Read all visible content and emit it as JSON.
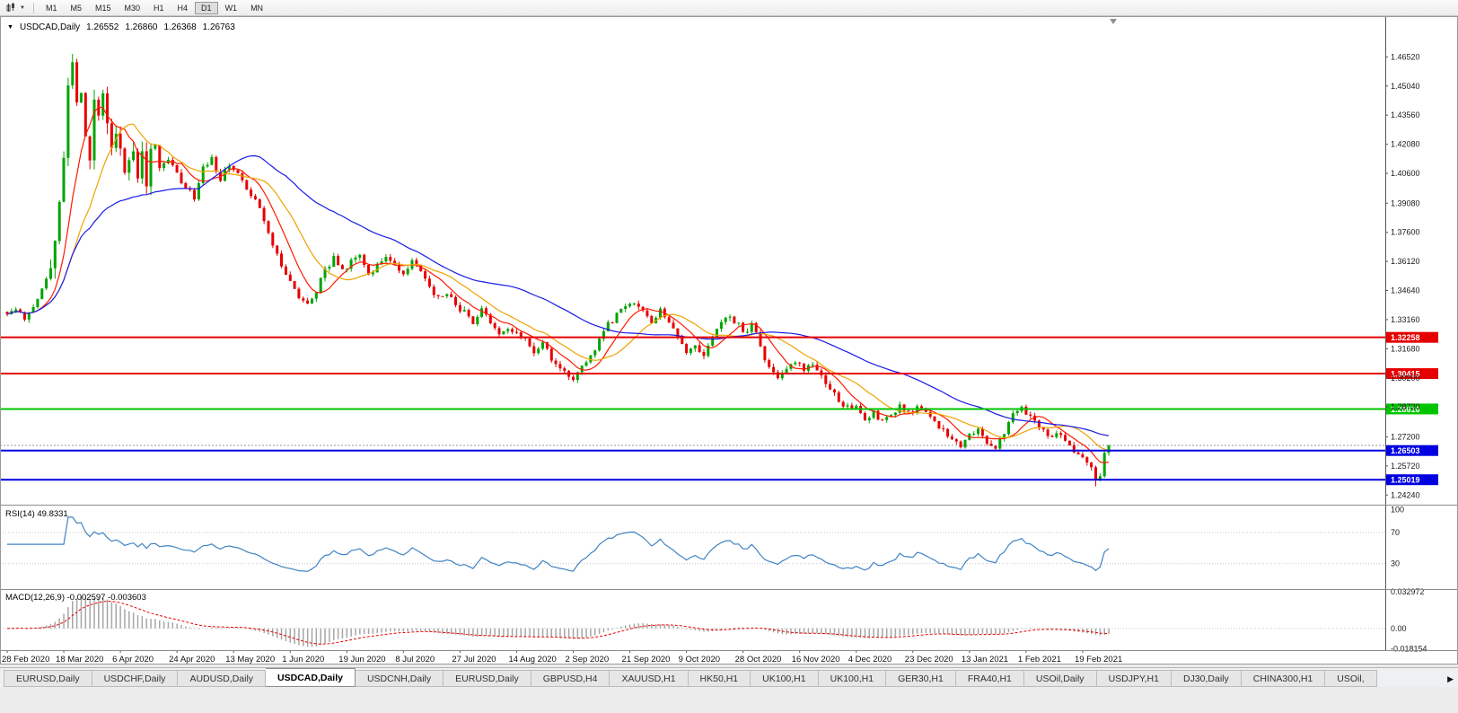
{
  "icons": {
    "chart_menu_glyph": "▼",
    "toolbar_dropdown_glyph": "▼",
    "tabs_scroll_right_glyph": "▶"
  },
  "toolbar": {
    "timeframes": [
      {
        "label": "M1",
        "active": false
      },
      {
        "label": "M5",
        "active": false
      },
      {
        "label": "M15",
        "active": false
      },
      {
        "label": "M30",
        "active": false
      },
      {
        "label": "H1",
        "active": false
      },
      {
        "label": "H4",
        "active": false
      },
      {
        "label": "D1",
        "active": true
      },
      {
        "label": "W1",
        "active": false
      },
      {
        "label": "MN",
        "active": false
      }
    ]
  },
  "chart": {
    "title": "USDCAD,Daily",
    "ohlc": {
      "open": "1.26552",
      "high": "1.26860",
      "low": "1.26368",
      "close": "1.26763"
    },
    "price_axis": {
      "pmax": 1.485,
      "pmin": 1.2375,
      "labels": [
        "1.46520",
        "1.45040",
        "1.43560",
        "1.42080",
        "1.40600",
        "1.39080",
        "1.37600",
        "1.36120",
        "1.34640",
        "1.33160",
        "1.31680",
        "1.30200",
        "1.28720",
        "1.27200",
        "1.25720",
        "1.24240"
      ]
    },
    "hlines": [
      {
        "price": 1.32258,
        "label": "1.32258",
        "color": "#e60000",
        "width": 2
      },
      {
        "price": 1.30415,
        "label": "1.30415",
        "color": "#e60000",
        "width": 2
      },
      {
        "price": 1.28616,
        "label": "1.28616",
        "color": "#00c400",
        "width": 2
      },
      {
        "price": 1.26503,
        "label": "1.26503",
        "color": "#0000e0",
        "width": 2
      },
      {
        "price": 1.25019,
        "label": "1.25019",
        "color": "#0000e0",
        "width": 2
      }
    ],
    "bid_line": {
      "price": 1.26763,
      "color": "#9a9a9a"
    },
    "date_axis": {
      "labels": [
        {
          "index": 0,
          "text": "28 Feb 2020"
        },
        {
          "index": 13,
          "text": "18 Mar 2020"
        },
        {
          "index": 26,
          "text": "6 Apr 2020"
        },
        {
          "index": 39,
          "text": "24 Apr 2020"
        },
        {
          "index": 52,
          "text": "13 May 2020"
        },
        {
          "index": 65,
          "text": "1 Jun 2020"
        },
        {
          "index": 78,
          "text": "19 Jun 2020"
        },
        {
          "index": 91,
          "text": "8 Jul 2020"
        },
        {
          "index": 104,
          "text": "27 Jul 2020"
        },
        {
          "index": 117,
          "text": "14 Aug 2020"
        },
        {
          "index": 130,
          "text": "2 Sep 2020"
        },
        {
          "index": 143,
          "text": "21 Sep 2020"
        },
        {
          "index": 156,
          "text": "9 Oct 2020"
        },
        {
          "index": 169,
          "text": "28 Oct 2020"
        },
        {
          "index": 182,
          "text": "16 Nov 2020"
        },
        {
          "index": 195,
          "text": "4 Dec 2020"
        },
        {
          "index": 208,
          "text": "23 Dec 2020"
        },
        {
          "index": 221,
          "text": "13 Jan 2021"
        },
        {
          "index": 234,
          "text": "1 Feb 2021"
        },
        {
          "index": 247,
          "text": "19 Feb 2021"
        }
      ]
    }
  },
  "indicators": {
    "rsi": {
      "label": "RSI(14) 49.8331",
      "color": "#3f83c4",
      "range_top": 105,
      "range_bottom": -3,
      "levels": [
        {
          "value": 100,
          "label": "100",
          "line": false
        },
        {
          "value": 70,
          "label": "70",
          "line": true
        },
        {
          "value": 30,
          "label": "30",
          "line": true
        }
      ]
    },
    "macd": {
      "label": "MACD(12,26,9) -0.002597 -0.003603",
      "histogram_color": "#a6a6a6",
      "signal_color": "#e60000",
      "range_top": 0.0345,
      "range_bottom": -0.0195,
      "levels": [
        {
          "value": 0.032972,
          "label": "0.032972",
          "line": false
        },
        {
          "value": 0,
          "label": "0.00",
          "line": true
        },
        {
          "value": -0.018154,
          "label": "-0.018154",
          "line": false
        }
      ]
    }
  },
  "chart_data": {
    "type": "candlestick",
    "symbol": "USDCAD",
    "timeframe": "Daily",
    "bars": 254,
    "up_color": "#00a400",
    "down_color": "#e60000",
    "seed": 20210226,
    "spike_zone": [
      10,
      33
    ],
    "wiggle": {
      "base": 0.0016,
      "spike": 0.0045
    },
    "wick": {
      "base": 0.0018,
      "spike": 0.0055
    },
    "wick_overrides": {
      "15": {
        "high": 1.4667
      },
      "250": {
        "low": 1.2468
      }
    },
    "moving_averages": [
      {
        "period": 8,
        "color": "#ff1a00"
      },
      {
        "period": 16,
        "color": "#efa300"
      },
      {
        "period": 45,
        "color": "#1a1ae6"
      }
    ],
    "close_waypoints": [
      [
        0,
        1.3335
      ],
      [
        2,
        1.336
      ],
      [
        4,
        1.333
      ],
      [
        6,
        1.339
      ],
      [
        8,
        1.348
      ],
      [
        10,
        1.356
      ],
      [
        11,
        1.372
      ],
      [
        12,
        1.396
      ],
      [
        13,
        1.417
      ],
      [
        14,
        1.448
      ],
      [
        15,
        1.464
      ],
      [
        16,
        1.438
      ],
      [
        17,
        1.451
      ],
      [
        18,
        1.422
      ],
      [
        19,
        1.412
      ],
      [
        20,
        1.442
      ],
      [
        21,
        1.435
      ],
      [
        22,
        1.446
      ],
      [
        23,
        1.429
      ],
      [
        24,
        1.419
      ],
      [
        25,
        1.429
      ],
      [
        26,
        1.423
      ],
      [
        27,
        1.408
      ],
      [
        28,
        1.415
      ],
      [
        29,
        1.42
      ],
      [
        30,
        1.406
      ],
      [
        31,
        1.413
      ],
      [
        32,
        1.403
      ],
      [
        33,
        1.415
      ],
      [
        34,
        1.419
      ],
      [
        35,
        1.409
      ],
      [
        37,
        1.413
      ],
      [
        39,
        1.406
      ],
      [
        41,
        1.399
      ],
      [
        43,
        1.394
      ],
      [
        45,
        1.409
      ],
      [
        47,
        1.414
      ],
      [
        49,
        1.403
      ],
      [
        51,
        1.411
      ],
      [
        53,
        1.406
      ],
      [
        55,
        1.399
      ],
      [
        57,
        1.392
      ],
      [
        59,
        1.383
      ],
      [
        61,
        1.37
      ],
      [
        63,
        1.359
      ],
      [
        65,
        1.35
      ],
      [
        67,
        1.343
      ],
      [
        69,
        1.339
      ],
      [
        71,
        1.346
      ],
      [
        73,
        1.357
      ],
      [
        75,
        1.363
      ],
      [
        77,
        1.356
      ],
      [
        79,
        1.361
      ],
      [
        81,
        1.363
      ],
      [
        83,
        1.355
      ],
      [
        85,
        1.359
      ],
      [
        87,
        1.364
      ],
      [
        89,
        1.359
      ],
      [
        91,
        1.354
      ],
      [
        93,
        1.361
      ],
      [
        95,
        1.356
      ],
      [
        97,
        1.349
      ],
      [
        99,
        1.342
      ],
      [
        101,
        1.344
      ],
      [
        103,
        1.339
      ],
      [
        105,
        1.335
      ],
      [
        107,
        1.33
      ],
      [
        109,
        1.336
      ],
      [
        111,
        1.331
      ],
      [
        113,
        1.324
      ],
      [
        115,
        1.328
      ],
      [
        117,
        1.325
      ],
      [
        119,
        1.321
      ],
      [
        121,
        1.316
      ],
      [
        123,
        1.32
      ],
      [
        125,
        1.311
      ],
      [
        127,
        1.306
      ],
      [
        129,
        1.302
      ],
      [
        130,
        1.3
      ],
      [
        132,
        1.307
      ],
      [
        134,
        1.314
      ],
      [
        136,
        1.321
      ],
      [
        138,
        1.329
      ],
      [
        140,
        1.334
      ],
      [
        142,
        1.339
      ],
      [
        144,
        1.341
      ],
      [
        146,
        1.337
      ],
      [
        148,
        1.331
      ],
      [
        150,
        1.337
      ],
      [
        152,
        1.33
      ],
      [
        154,
        1.324
      ],
      [
        156,
        1.314
      ],
      [
        158,
        1.318
      ],
      [
        160,
        1.314
      ],
      [
        162,
        1.322
      ],
      [
        164,
        1.329
      ],
      [
        166,
        1.333
      ],
      [
        168,
        1.329
      ],
      [
        170,
        1.324
      ],
      [
        171,
        1.331
      ],
      [
        173,
        1.317
      ],
      [
        175,
        1.307
      ],
      [
        177,
        1.302
      ],
      [
        179,
        1.308
      ],
      [
        181,
        1.311
      ],
      [
        183,
        1.307
      ],
      [
        185,
        1.309
      ],
      [
        187,
        1.303
      ],
      [
        189,
        1.297
      ],
      [
        191,
        1.291
      ],
      [
        193,
        1.287
      ],
      [
        195,
        1.289
      ],
      [
        197,
        1.281
      ],
      [
        199,
        1.285
      ],
      [
        201,
        1.279
      ],
      [
        203,
        1.283
      ],
      [
        205,
        1.287
      ],
      [
        207,
        1.284
      ],
      [
        209,
        1.287
      ],
      [
        211,
        1.284
      ],
      [
        213,
        1.279
      ],
      [
        215,
        1.275
      ],
      [
        217,
        1.271
      ],
      [
        219,
        1.268
      ],
      [
        221,
        1.272
      ],
      [
        223,
        1.276
      ],
      [
        225,
        1.27
      ],
      [
        227,
        1.266
      ],
      [
        229,
        1.274
      ],
      [
        231,
        1.284
      ],
      [
        233,
        1.287
      ],
      [
        235,
        1.282
      ],
      [
        237,
        1.277
      ],
      [
        239,
        1.272
      ],
      [
        241,
        1.274
      ],
      [
        243,
        1.269
      ],
      [
        245,
        1.264
      ],
      [
        247,
        1.261
      ],
      [
        249,
        1.255
      ],
      [
        250,
        1.25
      ],
      [
        251,
        1.253
      ],
      [
        252,
        1.263
      ],
      [
        253,
        1.2676
      ]
    ]
  },
  "tabs": {
    "items": [
      {
        "label": "EURUSD,Daily",
        "active": false
      },
      {
        "label": "USDCHF,Daily",
        "active": false
      },
      {
        "label": "AUDUSD,Daily",
        "active": false
      },
      {
        "label": "USDCAD,Daily",
        "active": true
      },
      {
        "label": "USDCNH,Daily",
        "active": false
      },
      {
        "label": "EURUSD,Daily",
        "active": false
      },
      {
        "label": "GBPUSD,H4",
        "active": false
      },
      {
        "label": "XAUUSD,H1",
        "active": false
      },
      {
        "label": "HK50,H1",
        "active": false
      },
      {
        "label": "UK100,H1",
        "active": false
      },
      {
        "label": "UK100,H1",
        "active": false
      },
      {
        "label": "GER30,H1",
        "active": false
      },
      {
        "label": "FRA40,H1",
        "active": false
      },
      {
        "label": "USOil,Daily",
        "active": false
      },
      {
        "label": "USDJPY,H1",
        "active": false
      },
      {
        "label": "DJ30,Daily",
        "active": false
      },
      {
        "label": "CHINA300,H1",
        "active": false
      },
      {
        "label": "USOil,",
        "active": false
      }
    ]
  }
}
